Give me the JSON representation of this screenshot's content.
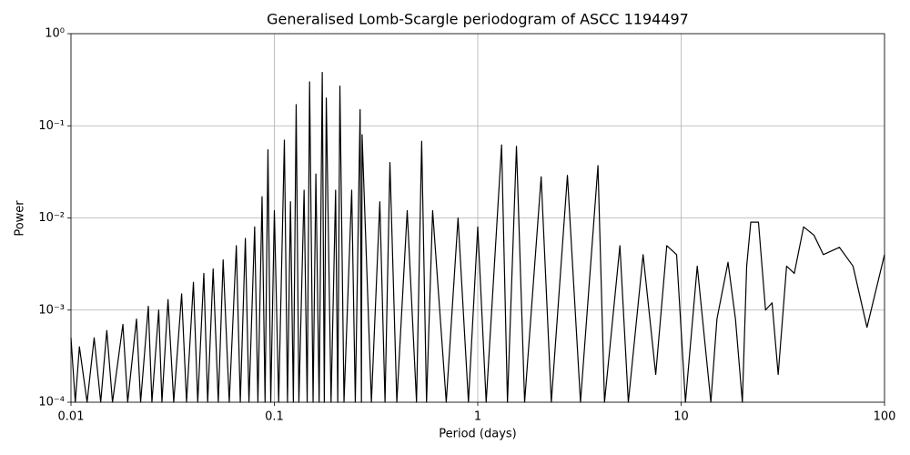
{
  "chart_data": {
    "type": "line",
    "title": "Generalised Lomb-Scargle periodogram of ASCC 1194497",
    "xlabel": "Period (days)",
    "ylabel": "Power",
    "xscale": "log",
    "yscale": "log",
    "grid": true,
    "xlim": [
      0.01,
      100
    ],
    "ylim": [
      0.0001,
      1
    ],
    "xticks": [
      0.01,
      0.1,
      1,
      10,
      100
    ],
    "yticks": [
      {
        "value": 0.0001,
        "label": "10⁻⁴"
      },
      {
        "value": 0.001,
        "label": "10⁻³"
      },
      {
        "value": 0.01,
        "label": "10⁻²"
      },
      {
        "value": 0.1,
        "label": "10⁻¹"
      },
      {
        "value": 1,
        "label": "10⁰"
      }
    ],
    "series": [
      {
        "color": "#000000",
        "x": [
          0.01,
          0.0105,
          0.011,
          0.012,
          0.013,
          0.014,
          0.015,
          0.016,
          0.018,
          0.019,
          0.021,
          0.022,
          0.024,
          0.025,
          0.027,
          0.028,
          0.03,
          0.032,
          0.035,
          0.037,
          0.04,
          0.042,
          0.045,
          0.047,
          0.05,
          0.053,
          0.056,
          0.06,
          0.065,
          0.068,
          0.072,
          0.075,
          0.08,
          0.083,
          0.087,
          0.09,
          0.093,
          0.096,
          0.1,
          0.105,
          0.112,
          0.116,
          0.12,
          0.124,
          0.128,
          0.132,
          0.14,
          0.145,
          0.149,
          0.155,
          0.16,
          0.166,
          0.172,
          0.176,
          0.18,
          0.19,
          0.2,
          0.205,
          0.21,
          0.22,
          0.24,
          0.25,
          0.264,
          0.268,
          0.27,
          0.3,
          0.33,
          0.35,
          0.37,
          0.4,
          0.45,
          0.5,
          0.53,
          0.56,
          0.6,
          0.7,
          0.8,
          0.9,
          1.0,
          1.1,
          1.31,
          1.4,
          1.55,
          1.7,
          2.05,
          2.3,
          2.76,
          3.2,
          3.9,
          4.2,
          5,
          5.5,
          6.5,
          7.5,
          8.5,
          9.5,
          10.5,
          12,
          14,
          15,
          17,
          18.5,
          20,
          21,
          22,
          24,
          26,
          28,
          30,
          33,
          36,
          40,
          45,
          50,
          60,
          70,
          82,
          100
        ],
        "values": [
          0.0005,
          0.0001,
          0.0004,
          0.0001,
          0.0005,
          0.0001,
          0.0006,
          0.0001,
          0.0007,
          0.0001,
          0.0008,
          0.0001,
          0.0011,
          0.0001,
          0.001,
          0.0001,
          0.0013,
          0.0001,
          0.0015,
          0.0001,
          0.002,
          0.0001,
          0.0025,
          0.0001,
          0.0028,
          0.0001,
          0.0035,
          0.0001,
          0.005,
          0.0001,
          0.006,
          0.0001,
          0.008,
          0.0001,
          0.017,
          0.0001,
          0.055,
          0.0001,
          0.012,
          0.0001,
          0.07,
          0.0001,
          0.015,
          0.0001,
          0.17,
          0.0001,
          0.02,
          0.0001,
          0.3,
          0.0001,
          0.03,
          0.0001,
          0.38,
          0.0001,
          0.2,
          0.0001,
          0.02,
          0.0001,
          0.27,
          0.0001,
          0.02,
          0.0001,
          0.15,
          0.0001,
          0.08,
          0.0001,
          0.015,
          0.0001,
          0.04,
          0.0001,
          0.012,
          0.0001,
          0.068,
          0.0001,
          0.012,
          0.0001,
          0.01,
          0.0001,
          0.008,
          0.0001,
          0.062,
          0.0001,
          0.06,
          0.0001,
          0.028,
          0.0001,
          0.029,
          0.0001,
          0.037,
          0.0001,
          0.005,
          0.0001,
          0.004,
          0.0002,
          0.005,
          0.004,
          0.0001,
          0.003,
          0.0001,
          0.0008,
          0.0033,
          0.0008,
          0.0001,
          0.003,
          0.009,
          0.009,
          0.001,
          0.0012,
          0.0002,
          0.003,
          0.0025,
          0.008,
          0.0065,
          0.004,
          0.0048,
          0.003,
          0.00065,
          0.004
        ]
      }
    ]
  }
}
